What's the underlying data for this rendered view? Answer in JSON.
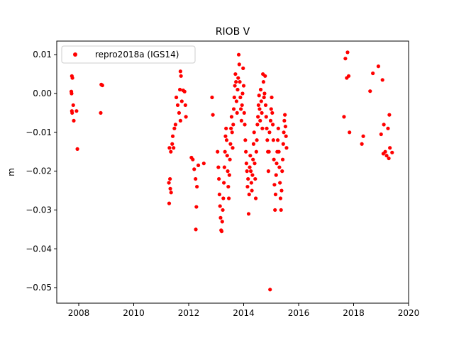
{
  "chart_data": {
    "type": "scatter",
    "title": "RIOB V",
    "xlabel": "",
    "ylabel": "m",
    "xlim": [
      2007.2,
      2020.0
    ],
    "ylim": [
      -0.054,
      0.0135
    ],
    "x_ticks": [
      2008,
      2010,
      2012,
      2014,
      2016,
      2018,
      2020
    ],
    "x_tick_labels": [
      "2008",
      "2010",
      "2012",
      "2014",
      "2016",
      "2018",
      "2020"
    ],
    "y_ticks": [
      0.01,
      0.0,
      -0.01,
      -0.02,
      -0.03,
      -0.04,
      -0.05
    ],
    "y_tick_labels": [
      "0.01",
      "0.00",
      "−0.01",
      "−0.02",
      "−0.03",
      "−0.04",
      "−0.05"
    ],
    "grid": false,
    "legend_position": "top-left",
    "series": [
      {
        "name": "repro2018a (IGS14)",
        "color": "#ff0000",
        "marker": "circle",
        "points": [
          [
            2007.75,
            0.0045
          ],
          [
            2007.77,
            0.004
          ],
          [
            2007.73,
            0.0005
          ],
          [
            2007.74,
            0.0
          ],
          [
            2007.8,
            -0.003
          ],
          [
            2007.75,
            -0.0045
          ],
          [
            2007.76,
            -0.005
          ],
          [
            2007.92,
            -0.0045
          ],
          [
            2007.82,
            -0.007
          ],
          [
            2007.95,
            -0.0143
          ],
          [
            2008.82,
            0.0023
          ],
          [
            2008.86,
            0.0021
          ],
          [
            2008.8,
            -0.005
          ],
          [
            2011.3,
            -0.014
          ],
          [
            2011.35,
            -0.015
          ],
          [
            2011.32,
            -0.022
          ],
          [
            2011.28,
            -0.023
          ],
          [
            2011.33,
            -0.0245
          ],
          [
            2011.36,
            -0.0255
          ],
          [
            2011.29,
            -0.0283
          ],
          [
            2011.4,
            -0.013
          ],
          [
            2011.42,
            -0.011
          ],
          [
            2011.48,
            -0.009
          ],
          [
            2011.52,
            -0.008
          ],
          [
            2011.45,
            -0.014
          ],
          [
            2011.55,
            -0.001
          ],
          [
            2011.6,
            -0.003
          ],
          [
            2011.65,
            -0.005
          ],
          [
            2011.7,
            0.0057
          ],
          [
            2011.72,
            0.0045
          ],
          [
            2011.68,
            0.001
          ],
          [
            2011.75,
            -0.002
          ],
          [
            2011.8,
            0.0008
          ],
          [
            2011.85,
            0.0005
          ],
          [
            2011.88,
            -0.003
          ],
          [
            2011.9,
            -0.006
          ],
          [
            2011.7,
            -0.007
          ],
          [
            2012.1,
            -0.0165
          ],
          [
            2012.15,
            -0.017
          ],
          [
            2012.2,
            -0.0195
          ],
          [
            2012.25,
            -0.022
          ],
          [
            2012.3,
            -0.024
          ],
          [
            2012.35,
            -0.0185
          ],
          [
            2012.28,
            -0.0292
          ],
          [
            2012.26,
            -0.035
          ],
          [
            2012.55,
            -0.018
          ],
          [
            2012.85,
            -0.001
          ],
          [
            2012.88,
            -0.0055
          ],
          [
            2013.05,
            -0.015
          ],
          [
            2013.08,
            -0.019
          ],
          [
            2013.1,
            -0.022
          ],
          [
            2013.12,
            -0.026
          ],
          [
            2013.14,
            -0.029
          ],
          [
            2013.16,
            -0.032
          ],
          [
            2013.18,
            -0.0352
          ],
          [
            2013.2,
            -0.0355
          ],
          [
            2013.22,
            -0.033
          ],
          [
            2013.24,
            -0.03
          ],
          [
            2013.26,
            -0.027
          ],
          [
            2013.28,
            -0.023
          ],
          [
            2013.3,
            -0.019
          ],
          [
            2013.32,
            -0.015
          ],
          [
            2013.34,
            -0.011
          ],
          [
            2013.36,
            -0.009
          ],
          [
            2013.38,
            -0.012
          ],
          [
            2013.4,
            -0.016
          ],
          [
            2013.42,
            -0.02
          ],
          [
            2013.44,
            -0.024
          ],
          [
            2013.46,
            -0.027
          ],
          [
            2013.48,
            -0.021
          ],
          [
            2013.5,
            -0.017
          ],
          [
            2013.52,
            -0.013
          ],
          [
            2013.54,
            -0.009
          ],
          [
            2013.56,
            -0.006
          ],
          [
            2013.58,
            -0.01
          ],
          [
            2013.6,
            -0.014
          ],
          [
            2013.62,
            -0.008
          ],
          [
            2013.64,
            -0.004
          ],
          [
            2013.66,
            -0.001
          ],
          [
            2013.68,
            0.002
          ],
          [
            2013.7,
            0.005
          ],
          [
            2013.72,
            0.003
          ],
          [
            2013.74,
            -0.002
          ],
          [
            2013.76,
            -0.005
          ],
          [
            2013.78,
            0.001
          ],
          [
            2013.8,
            0.004
          ],
          [
            2013.82,
            0.01
          ],
          [
            2013.84,
            0.0075
          ],
          [
            2013.86,
            0.003
          ],
          [
            2013.88,
            -0.001
          ],
          [
            2013.9,
            -0.004
          ],
          [
            2013.92,
            -0.007
          ],
          [
            2013.94,
            -0.003
          ],
          [
            2013.96,
            0.0
          ],
          [
            2013.98,
            0.0065
          ],
          [
            2014.0,
            0.002
          ],
          [
            2014.02,
            -0.005
          ],
          [
            2014.04,
            -0.008
          ],
          [
            2014.06,
            -0.012
          ],
          [
            2014.08,
            -0.015
          ],
          [
            2014.1,
            -0.018
          ],
          [
            2014.12,
            -0.02
          ],
          [
            2014.14,
            -0.024
          ],
          [
            2014.16,
            -0.022
          ],
          [
            2014.18,
            -0.031
          ],
          [
            2014.2,
            -0.026
          ],
          [
            2014.22,
            -0.019
          ],
          [
            2014.24,
            -0.016
          ],
          [
            2014.26,
            -0.02
          ],
          [
            2014.28,
            -0.023
          ],
          [
            2014.3,
            -0.025
          ],
          [
            2014.32,
            -0.021
          ],
          [
            2014.34,
            -0.017
          ],
          [
            2014.36,
            -0.013
          ],
          [
            2014.38,
            -0.01
          ],
          [
            2014.4,
            -0.018
          ],
          [
            2014.42,
            -0.022
          ],
          [
            2014.44,
            -0.027
          ],
          [
            2014.46,
            -0.015
          ],
          [
            2014.48,
            -0.012
          ],
          [
            2014.5,
            -0.008
          ],
          [
            2014.52,
            -0.006
          ],
          [
            2014.54,
            -0.003
          ],
          [
            2014.56,
            -0.0005
          ],
          [
            2014.58,
            -0.004
          ],
          [
            2014.6,
            -0.007
          ],
          [
            2014.62,
            0.001
          ],
          [
            2014.64,
            -0.002
          ],
          [
            2014.66,
            -0.005
          ],
          [
            2014.68,
            -0.009
          ],
          [
            2014.7,
            0.005
          ],
          [
            2014.72,
            0.003
          ],
          [
            2014.74,
            -0.001
          ],
          [
            2014.76,
            0.0
          ],
          [
            2014.78,
            0.0045
          ],
          [
            2014.8,
            -0.003
          ],
          [
            2014.82,
            -0.006
          ],
          [
            2014.84,
            -0.009
          ],
          [
            2014.86,
            -0.012
          ],
          [
            2014.88,
            -0.015
          ],
          [
            2014.9,
            -0.02
          ],
          [
            2014.92,
            -0.015
          ],
          [
            2014.94,
            -0.01
          ],
          [
            2014.96,
            -0.0505
          ],
          [
            2014.98,
            -0.007
          ],
          [
            2015.0,
            -0.004
          ],
          [
            2015.02,
            -0.001
          ],
          [
            2015.04,
            -0.005
          ],
          [
            2015.06,
            -0.008
          ],
          [
            2015.08,
            -0.012
          ],
          [
            2015.1,
            -0.017
          ],
          [
            2015.12,
            -0.0235
          ],
          [
            2015.14,
            -0.03
          ],
          [
            2015.16,
            -0.026
          ],
          [
            2015.18,
            -0.021
          ],
          [
            2015.2,
            -0.018
          ],
          [
            2015.22,
            -0.015
          ],
          [
            2015.24,
            -0.012
          ],
          [
            2015.26,
            -0.009
          ],
          [
            2015.28,
            -0.015
          ],
          [
            2015.3,
            -0.019
          ],
          [
            2015.32,
            -0.023
          ],
          [
            2015.34,
            -0.027
          ],
          [
            2015.36,
            -0.03
          ],
          [
            2015.38,
            -0.025
          ],
          [
            2015.4,
            -0.02
          ],
          [
            2015.42,
            -0.017
          ],
          [
            2015.44,
            -0.013
          ],
          [
            2015.46,
            -0.01
          ],
          [
            2015.48,
            -0.007
          ],
          [
            2015.5,
            -0.0055
          ],
          [
            2015.52,
            -0.0085
          ],
          [
            2015.54,
            -0.011
          ],
          [
            2015.56,
            -0.014
          ],
          [
            2017.65,
            -0.006
          ],
          [
            2017.7,
            0.009
          ],
          [
            2017.75,
            0.004
          ],
          [
            2017.78,
            0.0106
          ],
          [
            2017.82,
            0.0045
          ],
          [
            2017.85,
            -0.01
          ],
          [
            2018.3,
            -0.013
          ],
          [
            2018.35,
            -0.011
          ],
          [
            2018.6,
            0.0006
          ],
          [
            2018.7,
            0.0052
          ],
          [
            2018.9,
            0.007
          ],
          [
            2019.0,
            -0.0105
          ],
          [
            2019.05,
            0.0035
          ],
          [
            2019.1,
            -0.008
          ],
          [
            2019.08,
            -0.0155
          ],
          [
            2019.15,
            -0.015
          ],
          [
            2019.2,
            -0.016
          ],
          [
            2019.25,
            -0.009
          ],
          [
            2019.28,
            -0.0167
          ],
          [
            2019.3,
            -0.0055
          ],
          [
            2019.32,
            -0.014
          ],
          [
            2019.4,
            -0.0152
          ]
        ]
      }
    ]
  }
}
